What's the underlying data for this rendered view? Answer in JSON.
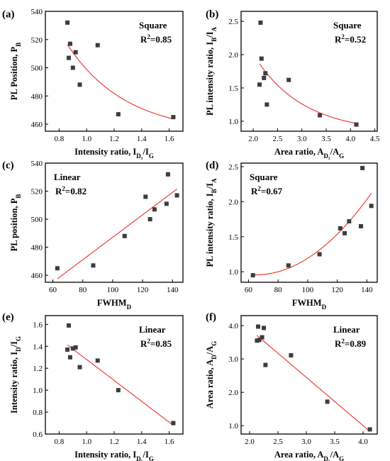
{
  "figure": {
    "background": "#ffffff",
    "marker_color": "#3c3c3c",
    "fit_color": "#e8302a"
  },
  "chart_data": [
    {
      "panel": "(a)",
      "type": "scatter",
      "fit": "square",
      "annotation": "Square",
      "r2_value": "0.85",
      "ylabel_main": "PL Position, P",
      "ylabel_sub": "B",
      "xlabel_main": "Intensity ratio, I",
      "xlabel_sub": "D₁",
      "xlabel_tail": "/I",
      "xlabel_sub2": "G",
      "xlim": [
        0.7,
        1.7
      ],
      "ylim": [
        455,
        540
      ],
      "xticks": [
        "0.8",
        "1.0",
        "1.2",
        "1.4",
        "1.6"
      ],
      "yticks": [
        "460",
        "480",
        "500",
        "520",
        "540"
      ],
      "points": [
        [
          0.86,
          532
        ],
        [
          0.87,
          507
        ],
        [
          0.88,
          517
        ],
        [
          0.9,
          500
        ],
        [
          0.92,
          511
        ],
        [
          0.95,
          488
        ],
        [
          1.08,
          516
        ],
        [
          1.23,
          467
        ],
        [
          1.63,
          465
        ]
      ]
    },
    {
      "panel": "(b)",
      "type": "scatter",
      "fit": "square",
      "annotation": "Square",
      "r2_value": "0.52",
      "ylabel_main": "PL intensity ratio, I",
      "ylabel_sub": "B",
      "ylabel_tail": "/I",
      "ylabel_sub2": "A",
      "xlabel_main": "Area ratio, A",
      "xlabel_sub": "D₁",
      "xlabel_tail": "/A",
      "xlabel_sub2": "G",
      "xlim": [
        1.75,
        4.55
      ],
      "ylim": [
        0.85,
        2.65
      ],
      "xticks": [
        "2.0",
        "2.5",
        "3.0",
        "3.5",
        "4.0",
        "4.5"
      ],
      "yticks": [
        "1.0",
        "1.5",
        "2.0",
        "2.5"
      ],
      "points": [
        [
          2.13,
          1.55
        ],
        [
          2.15,
          2.48
        ],
        [
          2.17,
          1.94
        ],
        [
          2.22,
          1.65
        ],
        [
          2.25,
          1.72
        ],
        [
          2.28,
          1.25
        ],
        [
          2.73,
          1.62
        ],
        [
          3.37,
          1.09
        ],
        [
          4.12,
          0.95
        ]
      ]
    },
    {
      "panel": "(c)",
      "type": "scatter",
      "fit": "linear",
      "annotation": "Linear",
      "r2_value": "0.82",
      "ylabel_main": "PL position, P",
      "ylabel_sub": "B",
      "xlabel_main": "FWHM",
      "xlabel_sub": "D",
      "xlim": [
        55,
        147
      ],
      "ylim": [
        455,
        540
      ],
      "xticks": [
        "60",
        "80",
        "100",
        "120",
        "140"
      ],
      "yticks": [
        "460",
        "480",
        "500",
        "520",
        "540"
      ],
      "points": [
        [
          63,
          465
        ],
        [
          87,
          467
        ],
        [
          108,
          488
        ],
        [
          122,
          516
        ],
        [
          125,
          500
        ],
        [
          128,
          507
        ],
        [
          136,
          511
        ],
        [
          137,
          532
        ],
        [
          143,
          517
        ]
      ]
    },
    {
      "panel": "(d)",
      "type": "scatter",
      "fit": "square",
      "annotation": "Square",
      "r2_value": "0.67",
      "ylabel_main": "PL intensity ratio, I",
      "ylabel_sub": "B",
      "ylabel_tail": "/I",
      "ylabel_sub2": "A",
      "xlabel_main": "FWHM",
      "xlabel_sub": "D",
      "xlim": [
        55,
        147
      ],
      "ylim": [
        0.85,
        2.55
      ],
      "xticks": [
        "60",
        "80",
        "100",
        "120",
        "140"
      ],
      "yticks": [
        "1.0",
        "1.5",
        "2.0",
        "2.5"
      ],
      "points": [
        [
          63,
          0.95
        ],
        [
          87,
          1.09
        ],
        [
          108,
          1.25
        ],
        [
          122,
          1.62
        ],
        [
          125,
          1.55
        ],
        [
          128,
          1.72
        ],
        [
          136,
          1.65
        ],
        [
          137,
          2.48
        ],
        [
          143,
          1.94
        ]
      ]
    },
    {
      "panel": "(e)",
      "type": "scatter",
      "fit": "linear",
      "annotation": "Linear",
      "r2_value": "0.85",
      "ylabel_main": "Intensity ratio, I",
      "ylabel_sub": "D",
      "ylabel_tail": "/I",
      "ylabel_sub2": "G",
      "xlabel_main": "Intensity ratio, I",
      "xlabel_sub": "D₁",
      "xlabel_tail": "/I",
      "xlabel_sub2": "G",
      "xlim": [
        0.7,
        1.7
      ],
      "ylim": [
        0.6,
        1.68
      ],
      "xticks": [
        "0.8",
        "1.0",
        "1.2",
        "1.4",
        "1.6"
      ],
      "yticks": [
        "0.6",
        "0.8",
        "1.0",
        "1.2",
        "1.4",
        "1.6"
      ],
      "points": [
        [
          0.86,
          1.37
        ],
        [
          0.87,
          1.59
        ],
        [
          0.88,
          1.3
        ],
        [
          0.9,
          1.38
        ],
        [
          0.92,
          1.39
        ],
        [
          0.95,
          1.21
        ],
        [
          1.08,
          1.27
        ],
        [
          1.23,
          1.0
        ],
        [
          1.63,
          0.7
        ]
      ]
    },
    {
      "panel": "(f)",
      "type": "scatter",
      "fit": "linear",
      "annotation": "Linear",
      "r2_value": "0.89",
      "ylabel_main": "Area ratio, A",
      "ylabel_sub": "D",
      "ylabel_tail": "/A",
      "ylabel_sub2": "G",
      "xlabel_main": "Area ratio, A",
      "xlabel_sub": "D₁",
      "xlabel_tail": "/A",
      "xlabel_sub2": "G",
      "xlim": [
        1.85,
        4.25
      ],
      "ylim": [
        0.75,
        4.3
      ],
      "xticks": [
        "2.0",
        "2.5",
        "3.0",
        "3.5",
        "4.0"
      ],
      "yticks": [
        "1.0",
        "2.0",
        "3.0",
        "4.0"
      ],
      "points": [
        [
          2.13,
          3.55
        ],
        [
          2.15,
          3.97
        ],
        [
          2.17,
          3.57
        ],
        [
          2.22,
          3.65
        ],
        [
          2.25,
          3.93
        ],
        [
          2.28,
          2.82
        ],
        [
          2.73,
          3.11
        ],
        [
          3.37,
          1.72
        ],
        [
          4.12,
          0.89
        ]
      ]
    }
  ]
}
